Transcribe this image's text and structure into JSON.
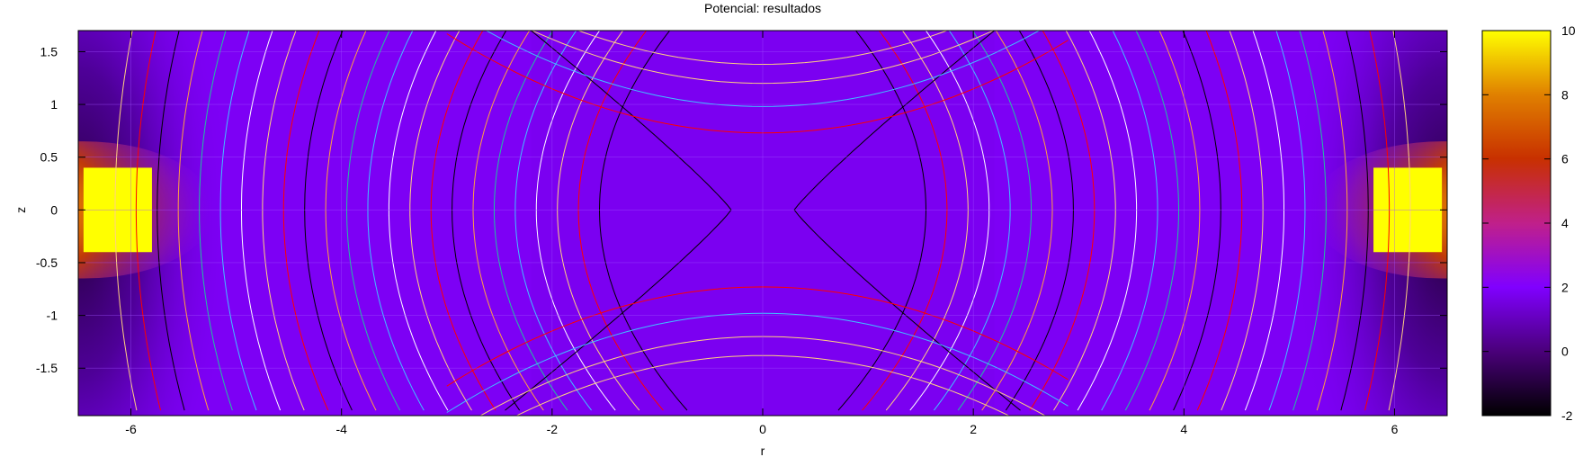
{
  "chart_data": {
    "type": "heatmap",
    "title": "Potencial: resultados",
    "xlabel": "r",
    "ylabel": "z",
    "xlim": [
      -6.5,
      6.5
    ],
    "ylim": [
      -1.95,
      1.7
    ],
    "xticks": [
      -6,
      -4,
      -2,
      0,
      2,
      4,
      6
    ],
    "xtick_labels": [
      "-6",
      "-4",
      "-2",
      "0",
      "2",
      "4",
      "6"
    ],
    "yticks": [
      1.5,
      1,
      0.5,
      0,
      -0.5,
      -1,
      -1.5
    ],
    "ytick_labels": [
      "1.5",
      "1",
      "0.5",
      "0",
      "-0.5",
      "-1",
      "-1.5"
    ],
    "colorbar": {
      "range": [
        -2,
        10
      ],
      "ticks": [
        10,
        8,
        6,
        4,
        2,
        0,
        -2
      ],
      "tick_labels": [
        "10",
        "8",
        "6",
        "4",
        "2",
        "0",
        "-2"
      ],
      "palette": [
        "#000000",
        "#4a007a",
        "#8000ff",
        "#c0208a",
        "#c83000",
        "#e08000",
        "#ffff00"
      ]
    },
    "grid": true,
    "heatmap_features": [
      {
        "name": "left electrode",
        "r_range": [
          -6.45,
          -5.8
        ],
        "z_range": [
          -0.4,
          0.4
        ],
        "value": 10
      },
      {
        "name": "right electrode",
        "r_range": [
          5.8,
          6.45
        ],
        "z_range": [
          -0.4,
          0.4
        ],
        "value": 10
      },
      {
        "name": "background",
        "value": 1.8
      }
    ],
    "contour_colors": [
      "#000000",
      "#ff0000",
      "#ffd080",
      "#ffffff",
      "#40c0ff",
      "#20c0a0",
      "#ffa040"
    ]
  }
}
